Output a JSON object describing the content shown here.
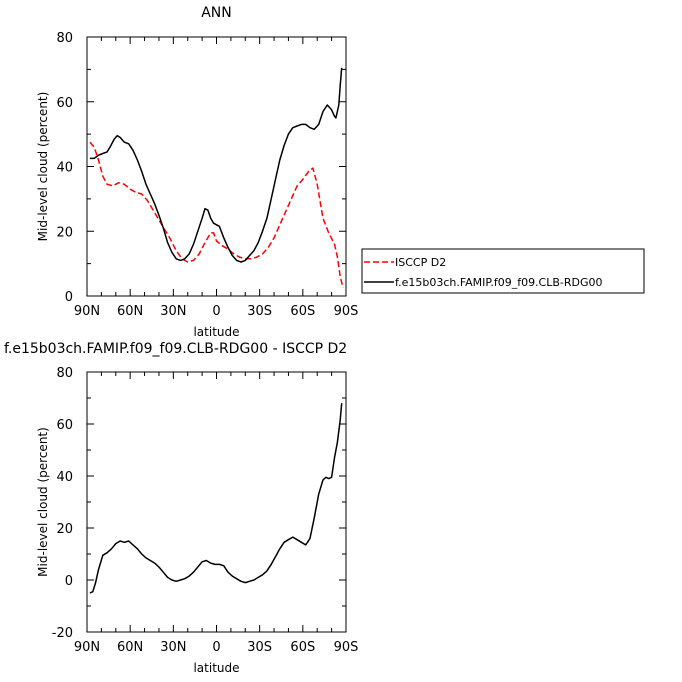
{
  "chart_data": [
    {
      "type": "line",
      "title": "ANN",
      "xlabel": "latitude",
      "ylabel": "Mid-level cloud (percent)",
      "x_ticks": [
        "90N",
        "60N",
        "30N",
        "0",
        "30S",
        "60S",
        "90S"
      ],
      "xlim": [
        90,
        -90
      ],
      "y_ticks": [
        "0",
        "20",
        "40",
        "60",
        "80"
      ],
      "ylim": [
        0,
        80
      ],
      "legend_position": "right",
      "series": [
        {
          "name": "ISCCP D2",
          "color": "#ff0000",
          "style": "dashed",
          "points": [
            [
              88,
              47.5
            ],
            [
              85,
              46
            ],
            [
              82,
              42
            ],
            [
              79,
              37
            ],
            [
              76,
              34.5
            ],
            [
              72,
              34
            ],
            [
              68,
              35
            ],
            [
              64,
              34.5
            ],
            [
              60,
              33
            ],
            [
              56,
              32
            ],
            [
              52,
              31.5
            ],
            [
              48,
              29.5
            ],
            [
              44,
              26.5
            ],
            [
              40,
              23.5
            ],
            [
              36,
              20.5
            ],
            [
              32,
              17.5
            ],
            [
              28,
              14
            ],
            [
              24,
              11.5
            ],
            [
              20,
              10.5
            ],
            [
              16,
              11
            ],
            [
              12,
              13
            ],
            [
              8,
              16.5
            ],
            [
              4,
              19.5
            ],
            [
              2,
              19.5
            ],
            [
              0,
              17
            ],
            [
              -4,
              15.5
            ],
            [
              -8,
              14.5
            ],
            [
              -12,
              13
            ],
            [
              -16,
              12
            ],
            [
              -20,
              11.5
            ],
            [
              -24,
              11.5
            ],
            [
              -28,
              12
            ],
            [
              -32,
              13
            ],
            [
              -36,
              15
            ],
            [
              -40,
              18
            ],
            [
              -44,
              22
            ],
            [
              -48,
              26
            ],
            [
              -52,
              30
            ],
            [
              -56,
              34
            ],
            [
              -60,
              36
            ],
            [
              -64,
              38.5
            ],
            [
              -67,
              39.5
            ],
            [
              -70,
              34.5
            ],
            [
              -74,
              24
            ],
            [
              -78,
              19.5
            ],
            [
              -82,
              16
            ],
            [
              -84,
              12
            ],
            [
              -86,
              6
            ],
            [
              -88,
              2.5
            ]
          ]
        },
        {
          "name": "f.e15b03ch.FAMIP.f09_f09.CLB-RDG00",
          "color": "#000000",
          "style": "solid",
          "points": [
            [
              88,
              42.5
            ],
            [
              85,
              42.5
            ],
            [
              82,
              43.5
            ],
            [
              79,
              44
            ],
            [
              76,
              44.5
            ],
            [
              74,
              46
            ],
            [
              71,
              48.5
            ],
            [
              69,
              49.5
            ],
            [
              67,
              49
            ],
            [
              64,
              47.5
            ],
            [
              61,
              47
            ],
            [
              58,
              45
            ],
            [
              55,
              42
            ],
            [
              52,
              38.5
            ],
            [
              49,
              34.5
            ],
            [
              46,
              31.5
            ],
            [
              43,
              28.5
            ],
            [
              40,
              25
            ],
            [
              37,
              21
            ],
            [
              34,
              16.5
            ],
            [
              31,
              13.5
            ],
            [
              28,
              11.5
            ],
            [
              25,
              11
            ],
            [
              22,
              11.5
            ],
            [
              19,
              13
            ],
            [
              16,
              16
            ],
            [
              13,
              20
            ],
            [
              10,
              24
            ],
            [
              8,
              27
            ],
            [
              6,
              26.5
            ],
            [
              4,
              24
            ],
            [
              2,
              22.5
            ],
            [
              0,
              22
            ],
            [
              -2,
              21.5
            ],
            [
              -5,
              18
            ],
            [
              -8,
              15
            ],
            [
              -11,
              12.5
            ],
            [
              -14,
              11
            ],
            [
              -17,
              10.5
            ],
            [
              -20,
              11
            ],
            [
              -23,
              12.5
            ],
            [
              -26,
              14
            ],
            [
              -29,
              16.5
            ],
            [
              -32,
              20
            ],
            [
              -35,
              24
            ],
            [
              -38,
              30
            ],
            [
              -41,
              36
            ],
            [
              -44,
              42
            ],
            [
              -47,
              46.5
            ],
            [
              -50,
              50
            ],
            [
              -53,
              52
            ],
            [
              -56,
              52.5
            ],
            [
              -59,
              53
            ],
            [
              -62,
              53
            ],
            [
              -65,
              52
            ],
            [
              -68,
              51.5
            ],
            [
              -71,
              53
            ],
            [
              -74,
              57
            ],
            [
              -77,
              59
            ],
            [
              -80,
              57.5
            ],
            [
              -82,
              55.5
            ],
            [
              -83,
              55
            ],
            [
              -85,
              59
            ],
            [
              -86,
              65
            ],
            [
              -87,
              70.5
            ]
          ]
        }
      ]
    },
    {
      "type": "line",
      "title": "f.e15b03ch.FAMIP.f09_f09.CLB-RDG00 - ISCCP D2",
      "xlabel": "latitude",
      "ylabel": "Mid-level cloud (percent)",
      "x_ticks": [
        "90N",
        "60N",
        "30N",
        "0",
        "30S",
        "60S",
        "90S"
      ],
      "xlim": [
        90,
        -90
      ],
      "y_ticks": [
        "-20",
        "0",
        "20",
        "40",
        "60",
        "80"
      ],
      "ylim": [
        -20,
        80
      ],
      "series": [
        {
          "color": "#000000",
          "style": "solid",
          "points": [
            [
              88,
              -5
            ],
            [
              86,
              -4.5
            ],
            [
              84,
              -1
            ],
            [
              82,
              4
            ],
            [
              79,
              9.5
            ],
            [
              76,
              10.5
            ],
            [
              73,
              12
            ],
            [
              70,
              14
            ],
            [
              67,
              15
            ],
            [
              64,
              14.5
            ],
            [
              61,
              15
            ],
            [
              58,
              13.5
            ],
            [
              55,
              12
            ],
            [
              52,
              10
            ],
            [
              49,
              8.5
            ],
            [
              46,
              7.5
            ],
            [
              43,
              6.5
            ],
            [
              40,
              5
            ],
            [
              37,
              3
            ],
            [
              34,
              1
            ],
            [
              31,
              0
            ],
            [
              28,
              -0.5
            ],
            [
              25,
              0
            ],
            [
              22,
              0.5
            ],
            [
              19,
              1.5
            ],
            [
              16,
              3
            ],
            [
              13,
              5
            ],
            [
              10,
              7
            ],
            [
              7,
              7.5
            ],
            [
              4,
              6.5
            ],
            [
              1,
              6
            ],
            [
              -2,
              6
            ],
            [
              -5,
              5.5
            ],
            [
              -8,
              3
            ],
            [
              -11,
              1.5
            ],
            [
              -14,
              0.5
            ],
            [
              -17,
              -0.5
            ],
            [
              -20,
              -1
            ],
            [
              -23,
              -0.5
            ],
            [
              -26,
              0
            ],
            [
              -29,
              1
            ],
            [
              -32,
              2
            ],
            [
              -35,
              3.5
            ],
            [
              -38,
              6
            ],
            [
              -41,
              9
            ],
            [
              -44,
              12
            ],
            [
              -47,
              14.5
            ],
            [
              -50,
              15.5
            ],
            [
              -53,
              16.5
            ],
            [
              -56,
              15.5
            ],
            [
              -59,
              14.5
            ],
            [
              -62,
              13.5
            ],
            [
              -65,
              16
            ],
            [
              -68,
              24
            ],
            [
              -71,
              33
            ],
            [
              -74,
              38.5
            ],
            [
              -76,
              39.5
            ],
            [
              -78,
              39
            ],
            [
              -80,
              39.5
            ],
            [
              -82,
              47
            ],
            [
              -84,
              53
            ],
            [
              -86,
              61.5
            ],
            [
              -87,
              68
            ]
          ]
        }
      ]
    }
  ]
}
